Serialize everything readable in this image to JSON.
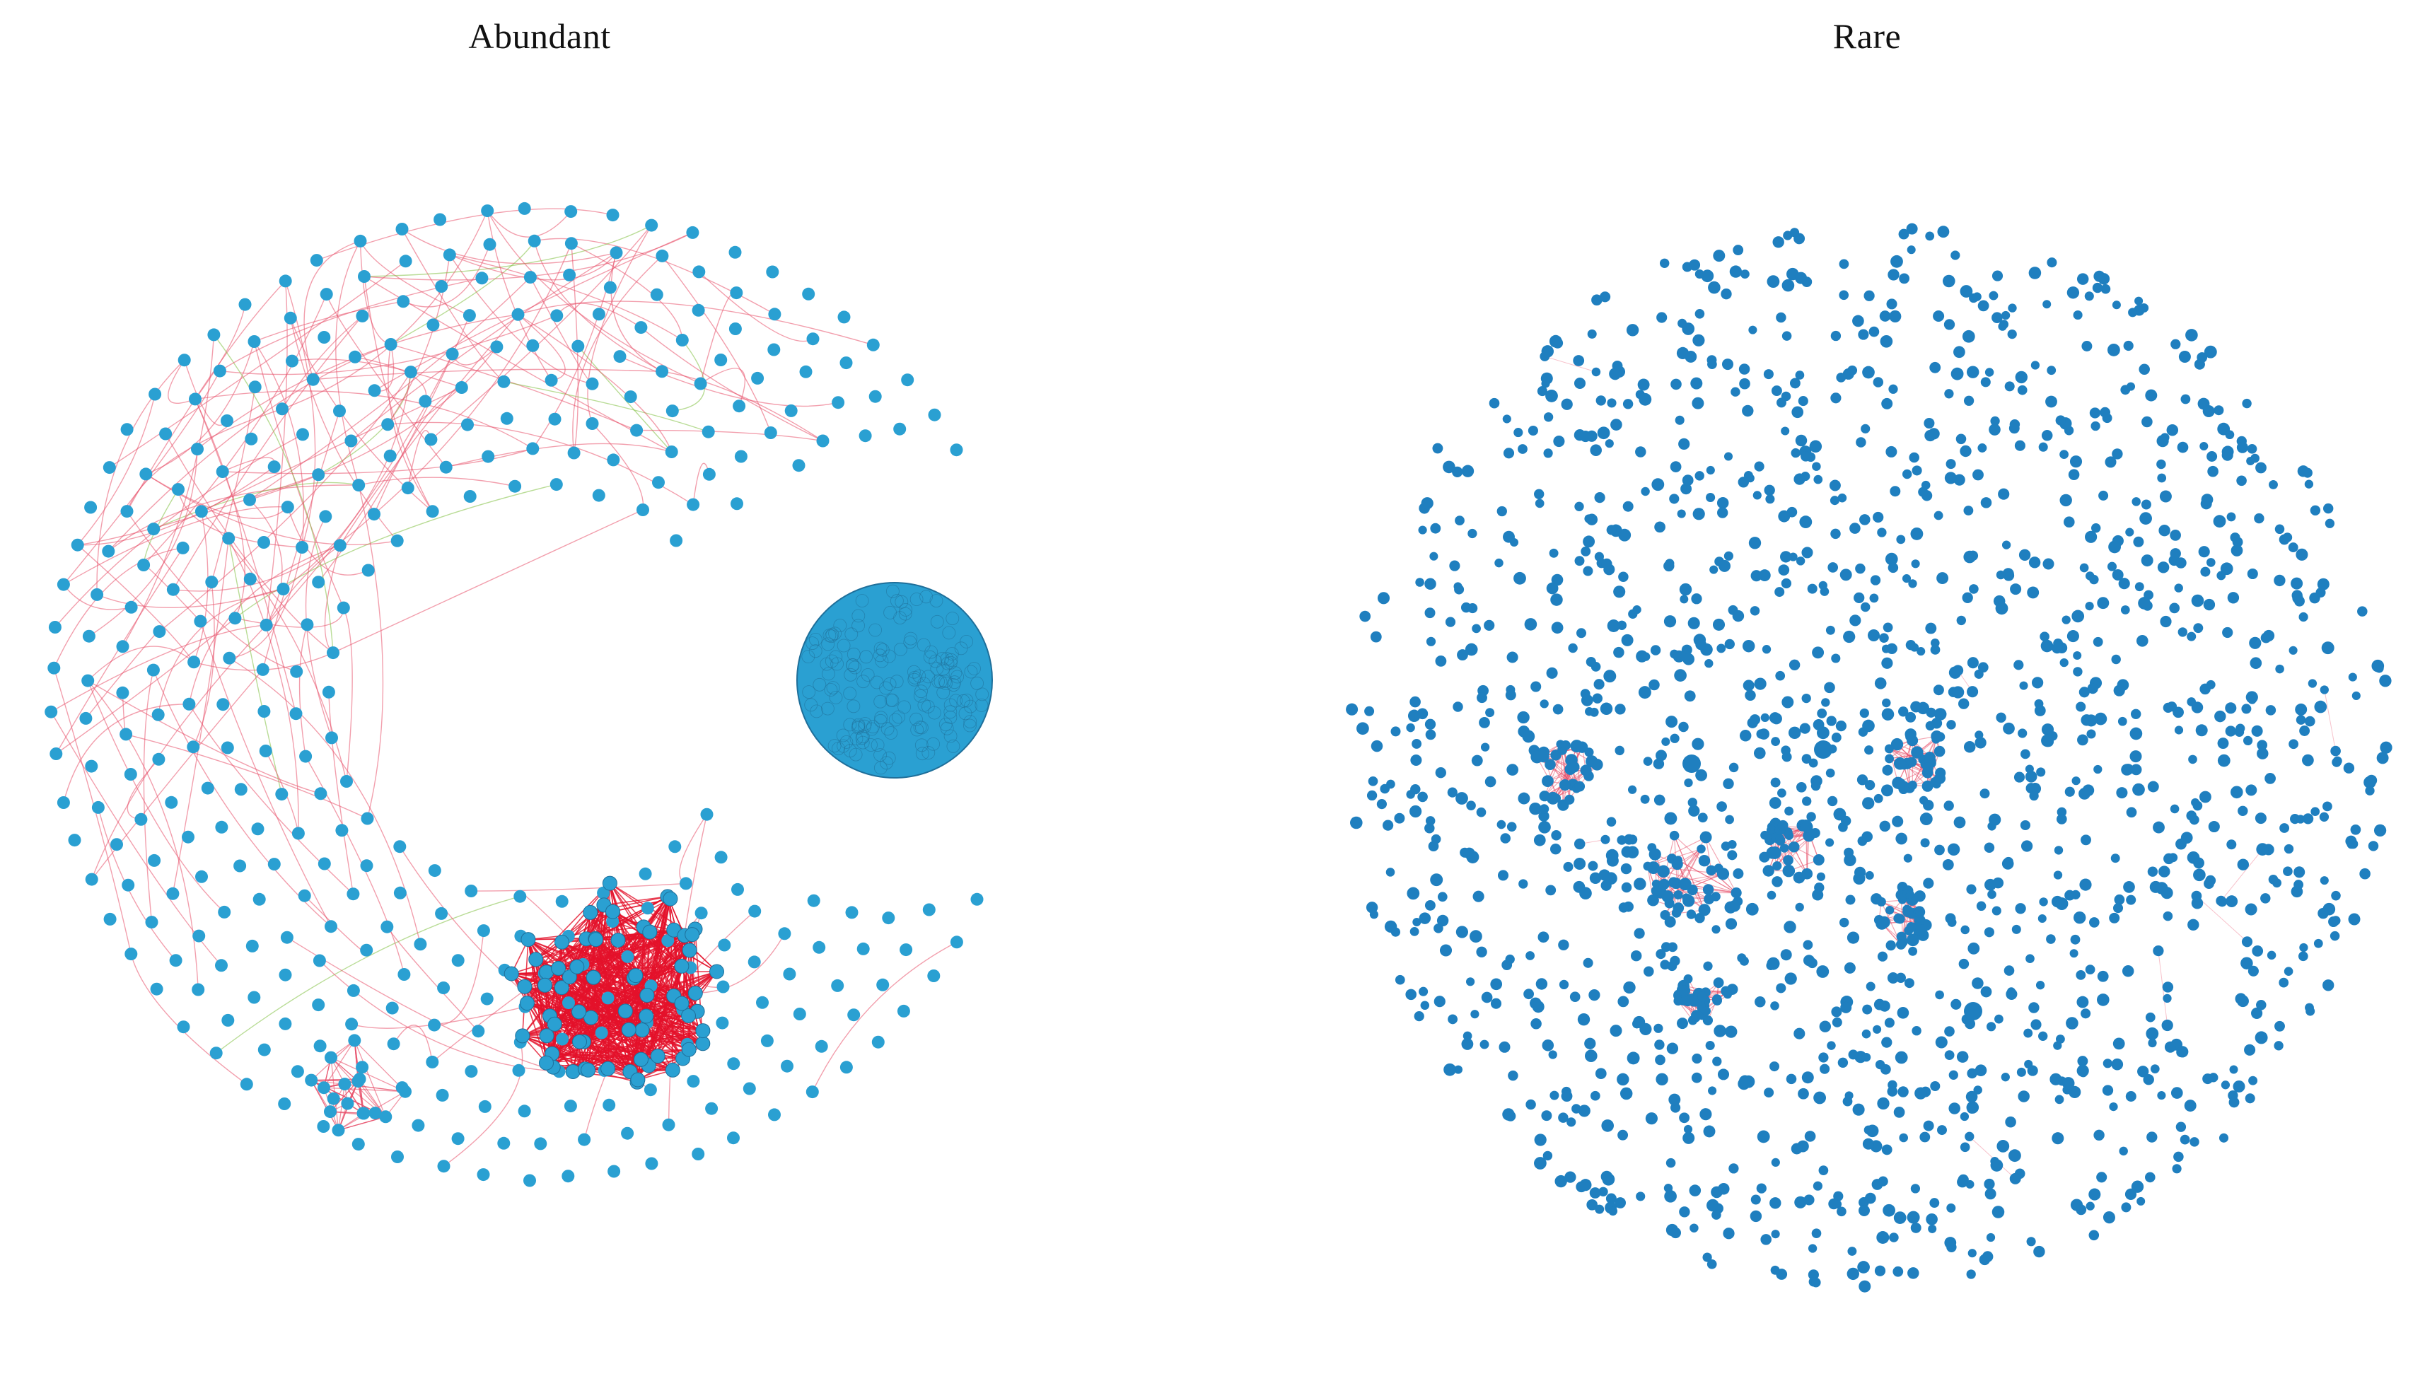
{
  "panels": {
    "abundant": {
      "title": "Abundant"
    },
    "rare": {
      "title": "Rare"
    }
  },
  "colors": {
    "node": "#2aa0d2",
    "node_rare": "#1f7fbf",
    "node_stroke": "#1f6f9a",
    "edge_positive": "#e8506a",
    "edge_dense": "#e3122b",
    "edge_negative": "#7fbf3f",
    "background": "#ffffff"
  }
}
